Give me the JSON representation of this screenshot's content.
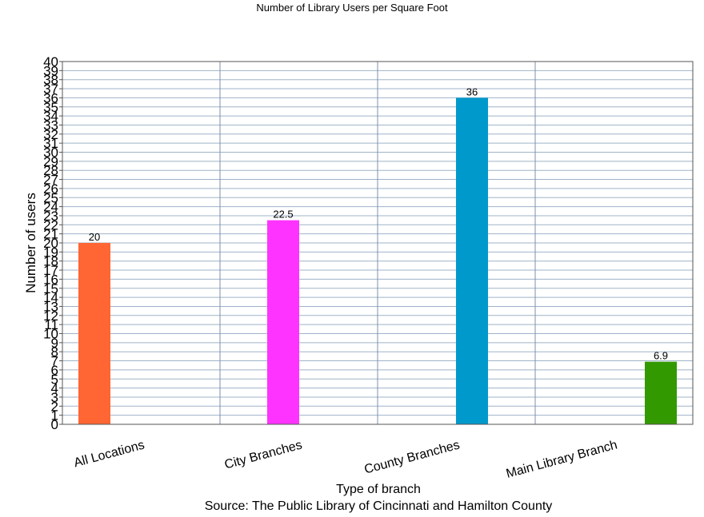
{
  "chart_data": {
    "type": "bar",
    "title": "Number of Library Users per Square Foot",
    "xlabel": "Type of branch",
    "ylabel": "Number of users",
    "source": "Source: The Public Library of Cincinnati and Hamilton County",
    "categories": [
      "All Locations",
      "City Branches",
      "County Branches",
      "Main Library Branch"
    ],
    "values": [
      20,
      22.5,
      36,
      6.9
    ],
    "data_labels": [
      "20",
      "22.5",
      "36",
      "6.9"
    ],
    "colors": [
      "#ff6633",
      "#ff33ff",
      "#0099cc",
      "#339900"
    ],
    "ylim": [
      0,
      40
    ],
    "ytick_step": 1,
    "grid": true,
    "legend": "none"
  }
}
